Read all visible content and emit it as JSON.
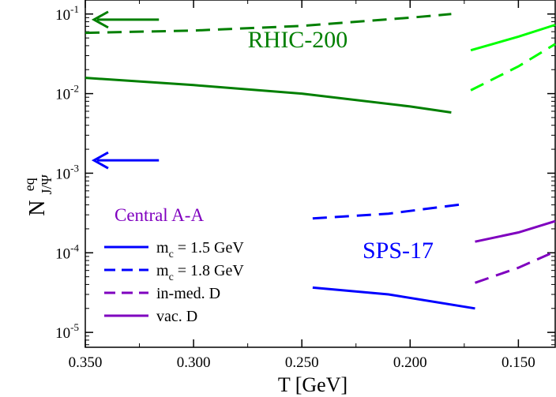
{
  "chart_data": {
    "type": "line",
    "title": "",
    "xlabel": "T [GeV]",
    "ylabel": {
      "base": "N",
      "sup": "eq",
      "sub": "J/Ψ"
    },
    "x_reversed": true,
    "xlim": [
      0.35,
      0.133
    ],
    "ylim": [
      6.5e-06,
      0.15
    ],
    "y_scale": "log",
    "x_ticks": [
      {
        "value": 0.35,
        "label": "0.350"
      },
      {
        "value": 0.3,
        "label": "0.300"
      },
      {
        "value": 0.25,
        "label": "0.250"
      },
      {
        "value": 0.2,
        "label": "0.200"
      },
      {
        "value": 0.15,
        "label": "0.150"
      }
    ],
    "y_ticks": [
      {
        "value": 1e-05,
        "base": "10",
        "exp": "-5"
      },
      {
        "value": 0.0001,
        "base": "10",
        "exp": "-4"
      },
      {
        "value": 0.001,
        "base": "10",
        "exp": "-3"
      },
      {
        "value": 0.01,
        "base": "10",
        "exp": "-2"
      },
      {
        "value": 0.1,
        "base": "10",
        "exp": "-1"
      }
    ],
    "grid": false,
    "series": [
      {
        "color": "#007f00",
        "dash": "dashed",
        "x": [
          0.35,
          0.3,
          0.25,
          0.2,
          0.181
        ],
        "y": [
          0.058,
          0.062,
          0.071,
          0.09,
          0.1
        ]
      },
      {
        "color": "#007f00",
        "dash": "solid",
        "x": [
          0.35,
          0.3,
          0.25,
          0.2,
          0.181
        ],
        "y": [
          0.0158,
          0.0128,
          0.01,
          0.0069,
          0.0058
        ]
      },
      {
        "color": "#00ff00",
        "dash": "solid",
        "x": [
          0.172,
          0.15,
          0.133
        ],
        "y": [
          0.035,
          0.052,
          0.073
        ]
      },
      {
        "color": "#00ff00",
        "dash": "dashed",
        "x": [
          0.172,
          0.15,
          0.133
        ],
        "y": [
          0.011,
          0.022,
          0.042
        ]
      },
      {
        "color": "#0000ff",
        "dash": "dashed",
        "x": [
          0.245,
          0.21,
          0.175
        ],
        "y": [
          0.00027,
          0.00031,
          0.00041
        ]
      },
      {
        "color": "#0000ff",
        "dash": "solid",
        "x": [
          0.245,
          0.21,
          0.17
        ],
        "y": [
          3.65e-05,
          3e-05,
          2e-05
        ]
      },
      {
        "color": "#7f00bf",
        "dash": "solid",
        "x": [
          0.17,
          0.15,
          0.133
        ],
        "y": [
          0.000138,
          0.00018,
          0.00025
        ]
      },
      {
        "color": "#7f00bf",
        "dash": "dashed",
        "x": [
          0.17,
          0.15,
          0.133
        ],
        "y": [
          4.2e-05,
          6.5e-05,
          0.000104
        ]
      }
    ],
    "arrows": [
      {
        "color": "#007f00",
        "y": 0.085,
        "x_from": 0.316,
        "x_to": 0.346
      },
      {
        "color": "#0000ff",
        "y": 0.00145,
        "x_from": 0.316,
        "x_to": 0.346
      }
    ],
    "annotations": [
      {
        "text": "RHIC-200",
        "color": "#007f00",
        "x": 0.275,
        "y": 0.038
      },
      {
        "text": "SPS-17",
        "color": "#0000ff",
        "x": 0.222,
        "y": 8.6e-05
      }
    ],
    "legend": {
      "placement": "bottom-left",
      "title": "Central A-A",
      "title_color": "#7f00bf",
      "items": [
        {
          "label_parts": [
            "m",
            "c",
            " = 1.5 GeV"
          ],
          "color": "#0000ff",
          "dash": "solid"
        },
        {
          "label_parts": [
            "m",
            "c",
            " = 1.8 GeV"
          ],
          "color": "#0000ff",
          "dash": "dashed"
        },
        {
          "label_parts": [
            "in-med. D"
          ],
          "color": "#7f00bf",
          "dash": "dashed"
        },
        {
          "label_parts": [
            "vac. D"
          ],
          "color": "#7f00bf",
          "dash": "solid"
        }
      ]
    }
  }
}
